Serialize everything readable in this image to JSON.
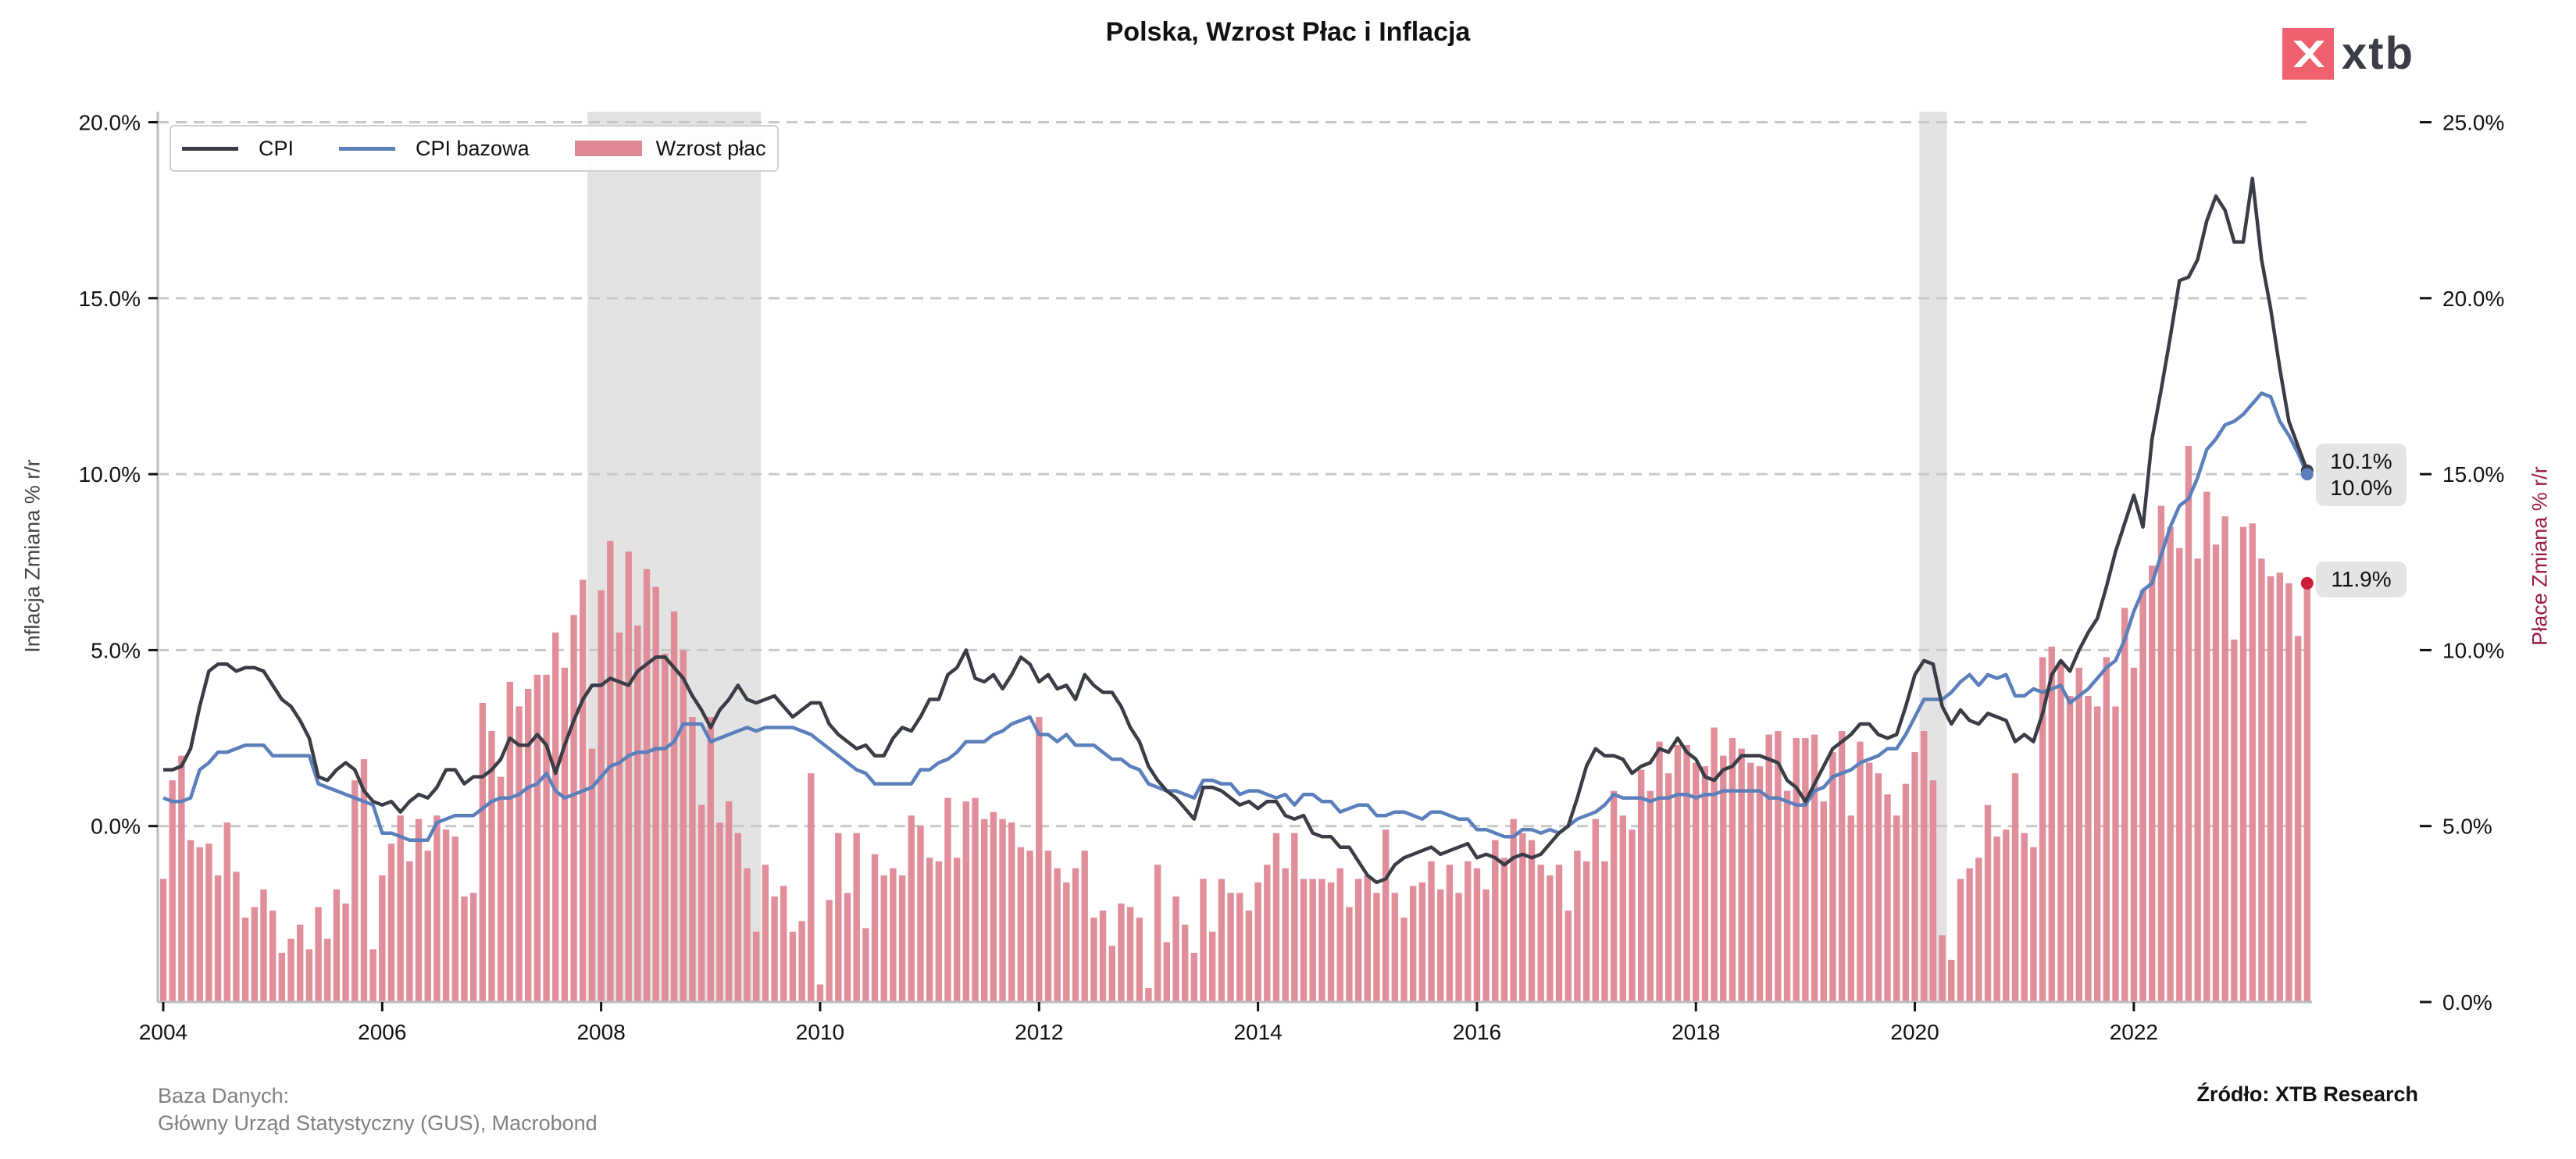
{
  "title": "Polska, Wzrost Płac i Inflacja",
  "logo_text": "xtb",
  "footer": {
    "database_label": "Baza Danych:",
    "database_sources": "Główny Urząd Statystyczny (GUS), Macrobond",
    "source": "Źródło: XTB Research"
  },
  "annotations": {
    "cpi_last": "10.1%",
    "core_last": "10.0%",
    "wages_last": "11.9%"
  },
  "colors": {
    "cpi": "#3a3d46",
    "core": "#5b7fbb",
    "wages": "#df8896",
    "wages_dot": "#cc1d3a",
    "shading": "#e3e3e3",
    "grid": "#c8c8c8"
  },
  "chart_data": {
    "type": "bar+line",
    "title": "Polska, Wzrost Płac i Inflacja",
    "ylabel_left": "Inflacja Zmiana % r/r",
    "ylabel_right": "Płace Zmiana % r/r",
    "ylim_left": [
      -5,
      20.3
    ],
    "ylim_right": [
      0,
      25.3
    ],
    "grid": true,
    "legend_position": "top-left",
    "x_tick_labels": [
      "2004",
      "2006",
      "2008",
      "2010",
      "2012",
      "2014",
      "2016",
      "2018",
      "2020",
      "2022"
    ],
    "y_left_tick_labels": [
      "0.0%",
      "5.0%",
      "10.0%",
      "15.0%",
      "20.0%"
    ],
    "y_left_tick_values": [
      0,
      5,
      10,
      15,
      20
    ],
    "y_right_tick_labels": [
      "0.0%",
      "5.0%",
      "10.0%",
      "15.0%",
      "20.0%",
      "25.0%"
    ],
    "y_right_tick_values": [
      0,
      5,
      10,
      15,
      20,
      25
    ],
    "shaded_periods": [
      [
        "2007-12",
        "2009-06"
      ],
      [
        "2020-02",
        "2020-04"
      ]
    ],
    "x": [
      "2004-01",
      "2004-02",
      "2004-03",
      "2004-04",
      "2004-05",
      "2004-06",
      "2004-07",
      "2004-08",
      "2004-09",
      "2004-10",
      "2004-11",
      "2004-12",
      "2005-01",
      "2005-02",
      "2005-03",
      "2005-04",
      "2005-05",
      "2005-06",
      "2005-07",
      "2005-08",
      "2005-09",
      "2005-10",
      "2005-11",
      "2005-12",
      "2006-01",
      "2006-02",
      "2006-03",
      "2006-04",
      "2006-05",
      "2006-06",
      "2006-07",
      "2006-08",
      "2006-09",
      "2006-10",
      "2006-11",
      "2006-12",
      "2007-01",
      "2007-02",
      "2007-03",
      "2007-04",
      "2007-05",
      "2007-06",
      "2007-07",
      "2007-08",
      "2007-09",
      "2007-10",
      "2007-11",
      "2007-12",
      "2008-01",
      "2008-02",
      "2008-03",
      "2008-04",
      "2008-05",
      "2008-06",
      "2008-07",
      "2008-08",
      "2008-09",
      "2008-10",
      "2008-11",
      "2008-12",
      "2009-01",
      "2009-02",
      "2009-03",
      "2009-04",
      "2009-05",
      "2009-06",
      "2009-07",
      "2009-08",
      "2009-09",
      "2009-10",
      "2009-11",
      "2009-12",
      "2010-01",
      "2010-02",
      "2010-03",
      "2010-04",
      "2010-05",
      "2010-06",
      "2010-07",
      "2010-08",
      "2010-09",
      "2010-10",
      "2010-11",
      "2010-12",
      "2011-01",
      "2011-02",
      "2011-03",
      "2011-04",
      "2011-05",
      "2011-06",
      "2011-07",
      "2011-08",
      "2011-09",
      "2011-10",
      "2011-11",
      "2011-12",
      "2012-01",
      "2012-02",
      "2012-03",
      "2012-04",
      "2012-05",
      "2012-06",
      "2012-07",
      "2012-08",
      "2012-09",
      "2012-10",
      "2012-11",
      "2012-12",
      "2013-01",
      "2013-02",
      "2013-03",
      "2013-04",
      "2013-05",
      "2013-06",
      "2013-07",
      "2013-08",
      "2013-09",
      "2013-10",
      "2013-11",
      "2013-12",
      "2014-01",
      "2014-02",
      "2014-03",
      "2014-04",
      "2014-05",
      "2014-06",
      "2014-07",
      "2014-08",
      "2014-09",
      "2014-10",
      "2014-11",
      "2014-12",
      "2015-01",
      "2015-02",
      "2015-03",
      "2015-04",
      "2015-05",
      "2015-06",
      "2015-07",
      "2015-08",
      "2015-09",
      "2015-10",
      "2015-11",
      "2015-12",
      "2016-01",
      "2016-02",
      "2016-03",
      "2016-04",
      "2016-05",
      "2016-06",
      "2016-07",
      "2016-08",
      "2016-09",
      "2016-10",
      "2016-11",
      "2016-12",
      "2017-01",
      "2017-02",
      "2017-03",
      "2017-04",
      "2017-05",
      "2017-06",
      "2017-07",
      "2017-08",
      "2017-09",
      "2017-10",
      "2017-11",
      "2017-12",
      "2018-01",
      "2018-02",
      "2018-03",
      "2018-04",
      "2018-05",
      "2018-06",
      "2018-07",
      "2018-08",
      "2018-09",
      "2018-10",
      "2018-11",
      "2018-12",
      "2019-01",
      "2019-02",
      "2019-03",
      "2019-04",
      "2019-05",
      "2019-06",
      "2019-07",
      "2019-08",
      "2019-09",
      "2019-10",
      "2019-11",
      "2019-12",
      "2020-01",
      "2020-02",
      "2020-03",
      "2020-04",
      "2020-05",
      "2020-06",
      "2020-07",
      "2020-08",
      "2020-09",
      "2020-10",
      "2020-11",
      "2020-12",
      "2021-01",
      "2021-02",
      "2021-03",
      "2021-04",
      "2021-05",
      "2021-06",
      "2021-07",
      "2021-08",
      "2021-09",
      "2021-10",
      "2021-11",
      "2021-12",
      "2022-01",
      "2022-02",
      "2022-03",
      "2022-04",
      "2022-05",
      "2022-06",
      "2022-07",
      "2022-08",
      "2022-09",
      "2022-10",
      "2022-11",
      "2022-12",
      "2023-01",
      "2023-02",
      "2023-03",
      "2023-04",
      "2023-05",
      "2023-06",
      "2023-07",
      "2023-08"
    ],
    "series": [
      {
        "name": "CPI",
        "type": "line",
        "axis": "left",
        "values": [
          1.6,
          1.6,
          1.7,
          2.2,
          3.4,
          4.4,
          4.6,
          4.6,
          4.4,
          4.5,
          4.5,
          4.4,
          4.0,
          3.6,
          3.4,
          3.0,
          2.5,
          1.4,
          1.3,
          1.6,
          1.8,
          1.6,
          1.0,
          0.7,
          0.6,
          0.7,
          0.4,
          0.7,
          0.9,
          0.8,
          1.1,
          1.6,
          1.6,
          1.2,
          1.4,
          1.4,
          1.6,
          1.9,
          2.5,
          2.3,
          2.3,
          2.6,
          2.3,
          1.5,
          2.3,
          3.0,
          3.6,
          4.0,
          4.0,
          4.2,
          4.1,
          4.0,
          4.4,
          4.6,
          4.8,
          4.8,
          4.5,
          4.2,
          3.7,
          3.3,
          2.8,
          3.3,
          3.6,
          4.0,
          3.6,
          3.5,
          3.6,
          3.7,
          3.4,
          3.1,
          3.3,
          3.5,
          3.5,
          2.9,
          2.6,
          2.4,
          2.2,
          2.3,
          2.0,
          2.0,
          2.5,
          2.8,
          2.7,
          3.1,
          3.6,
          3.6,
          4.3,
          4.5,
          5.0,
          4.2,
          4.1,
          4.3,
          3.9,
          4.3,
          4.8,
          4.6,
          4.1,
          4.3,
          3.9,
          4.0,
          3.6,
          4.3,
          4.0,
          3.8,
          3.8,
          3.4,
          2.8,
          2.4,
          1.7,
          1.3,
          1.0,
          0.8,
          0.5,
          0.2,
          1.1,
          1.1,
          1.0,
          0.8,
          0.6,
          0.7,
          0.5,
          0.7,
          0.7,
          0.3,
          0.2,
          0.3,
          -0.2,
          -0.3,
          -0.3,
          -0.6,
          -0.6,
          -1.0,
          -1.4,
          -1.6,
          -1.5,
          -1.1,
          -0.9,
          -0.8,
          -0.7,
          -0.6,
          -0.8,
          -0.7,
          -0.6,
          -0.5,
          -0.9,
          -0.8,
          -0.9,
          -1.1,
          -0.9,
          -0.8,
          -0.9,
          -0.8,
          -0.5,
          -0.2,
          0.0,
          0.8,
          1.7,
          2.2,
          2.0,
          2.0,
          1.9,
          1.5,
          1.7,
          1.8,
          2.2,
          2.1,
          2.5,
          2.1,
          1.9,
          1.4,
          1.3,
          1.6,
          1.7,
          2.0,
          2.0,
          2.0,
          1.9,
          1.8,
          1.3,
          1.1,
          0.7,
          1.2,
          1.7,
          2.2,
          2.4,
          2.6,
          2.9,
          2.9,
          2.6,
          2.5,
          2.6,
          3.4,
          4.3,
          4.7,
          4.6,
          3.4,
          2.9,
          3.3,
          3.0,
          2.9,
          3.2,
          3.1,
          3.0,
          2.4,
          2.6,
          2.4,
          3.2,
          4.3,
          4.7,
          4.4,
          5.0,
          5.5,
          5.9,
          6.8,
          7.8,
          8.6,
          9.4,
          8.5,
          11.0,
          12.4,
          13.9,
          15.5,
          15.6,
          16.1,
          17.2,
          17.9,
          17.5,
          16.6,
          16.6,
          18.4,
          16.1,
          14.7,
          13.0,
          11.5,
          10.8,
          10.1
        ]
      },
      {
        "name": "CPI bazowa",
        "type": "line",
        "axis": "left",
        "values": [
          0.8,
          0.7,
          0.7,
          0.8,
          1.6,
          1.8,
          2.1,
          2.1,
          2.2,
          2.3,
          2.3,
          2.3,
          2.0,
          2.0,
          2.0,
          2.0,
          2.0,
          1.2,
          1.1,
          1.0,
          0.9,
          0.8,
          0.7,
          0.6,
          -0.2,
          -0.2,
          -0.3,
          -0.4,
          -0.4,
          -0.4,
          0.1,
          0.2,
          0.3,
          0.3,
          0.3,
          0.5,
          0.7,
          0.8,
          0.8,
          0.9,
          1.1,
          1.2,
          1.5,
          1.0,
          0.8,
          0.9,
          1.0,
          1.1,
          1.4,
          1.7,
          1.8,
          2.0,
          2.1,
          2.1,
          2.2,
          2.2,
          2.4,
          2.9,
          2.9,
          2.9,
          2.4,
          2.5,
          2.6,
          2.7,
          2.8,
          2.7,
          2.8,
          2.8,
          2.8,
          2.8,
          2.7,
          2.6,
          2.4,
          2.2,
          2.0,
          1.8,
          1.6,
          1.5,
          1.2,
          1.2,
          1.2,
          1.2,
          1.2,
          1.6,
          1.6,
          1.8,
          1.9,
          2.1,
          2.4,
          2.4,
          2.4,
          2.6,
          2.7,
          2.9,
          3.0,
          3.1,
          2.6,
          2.6,
          2.4,
          2.6,
          2.3,
          2.3,
          2.3,
          2.1,
          1.9,
          1.9,
          1.7,
          1.6,
          1.2,
          1.1,
          1.0,
          1.0,
          0.9,
          0.8,
          1.3,
          1.3,
          1.2,
          1.2,
          0.9,
          1.0,
          1.0,
          0.9,
          0.8,
          0.9,
          0.6,
          0.9,
          0.9,
          0.7,
          0.7,
          0.4,
          0.5,
          0.6,
          0.6,
          0.3,
          0.3,
          0.4,
          0.4,
          0.3,
          0.2,
          0.4,
          0.4,
          0.3,
          0.2,
          0.2,
          -0.1,
          -0.1,
          -0.2,
          -0.3,
          -0.3,
          -0.1,
          -0.1,
          -0.2,
          -0.1,
          -0.2,
          0.0,
          0.2,
          0.3,
          0.4,
          0.6,
          0.9,
          0.8,
          0.8,
          0.8,
          0.7,
          0.8,
          0.8,
          0.9,
          0.9,
          0.8,
          0.9,
          0.9,
          1.0,
          1.0,
          1.0,
          1.0,
          1.0,
          0.8,
          0.8,
          0.7,
          0.6,
          0.6,
          1.0,
          1.1,
          1.4,
          1.5,
          1.6,
          1.8,
          1.9,
          2.0,
          2.2,
          2.2,
          2.6,
          3.1,
          3.6,
          3.6,
          3.6,
          3.8,
          4.1,
          4.3,
          4.0,
          4.3,
          4.2,
          4.3,
          3.7,
          3.7,
          3.9,
          3.8,
          3.9,
          4.0,
          3.5,
          3.7,
          3.9,
          4.2,
          4.5,
          4.7,
          5.3,
          6.1,
          6.7,
          6.9,
          7.7,
          8.5,
          9.1,
          9.3,
          9.9,
          10.7,
          11.0,
          11.4,
          11.5,
          11.7,
          12.0,
          12.3,
          12.2,
          11.5,
          11.1,
          10.6,
          10.0
        ]
      },
      {
        "name": "Wzrost płac",
        "type": "bar",
        "axis": "right",
        "values": [
          3.5,
          6.3,
          7.0,
          4.6,
          4.4,
          4.5,
          3.6,
          5.1,
          3.7,
          2.4,
          2.7,
          3.2,
          2.6,
          1.4,
          1.8,
          2.2,
          1.5,
          2.7,
          1.8,
          3.2,
          2.8,
          6.3,
          6.9,
          1.5,
          3.6,
          4.5,
          5.3,
          4.0,
          5.2,
          4.3,
          5.3,
          4.9,
          4.7,
          3.0,
          3.1,
          8.5,
          7.7,
          6.4,
          9.1,
          8.4,
          8.9,
          9.3,
          9.3,
          10.5,
          9.5,
          11.0,
          12.0,
          7.2,
          11.7,
          13.1,
          10.5,
          12.8,
          10.7,
          12.3,
          11.8,
          9.9,
          11.1,
          10.0,
          8.1,
          5.6,
          8.1,
          5.1,
          5.7,
          4.8,
          3.8,
          2.0,
          3.9,
          3.0,
          3.3,
          2.0,
          2.3,
          6.5,
          0.5,
          2.9,
          4.8,
          3.1,
          4.8,
          2.1,
          4.2,
          3.6,
          3.8,
          3.6,
          5.3,
          5.0,
          4.1,
          4.0,
          5.8,
          4.1,
          5.7,
          5.8,
          5.2,
          5.4,
          5.2,
          5.1,
          4.4,
          4.3,
          8.1,
          4.3,
          3.8,
          3.4,
          3.8,
          4.3,
          2.4,
          2.6,
          1.6,
          2.8,
          2.7,
          2.4,
          0.4,
          3.9,
          1.7,
          3.0,
          2.2,
          1.4,
          3.5,
          2.0,
          3.5,
          3.1,
          3.1,
          2.6,
          3.4,
          3.9,
          4.8,
          3.8,
          4.8,
          3.5,
          3.5,
          3.5,
          3.4,
          3.8,
          2.7,
          3.5,
          3.6,
          3.1,
          4.9,
          3.1,
          2.4,
          3.3,
          3.4,
          4.0,
          3.2,
          3.9,
          3.1,
          4.0,
          3.8,
          3.2,
          4.6,
          4.1,
          5.2,
          4.8,
          4.6,
          3.9,
          3.6,
          3.9,
          2.6,
          4.3,
          4.0,
          5.2,
          4.0,
          6.0,
          5.3,
          4.9,
          6.6,
          6.0,
          7.4,
          6.5,
          7.3,
          7.3,
          6.8,
          6.7,
          7.8,
          7.0,
          7.5,
          7.2,
          6.8,
          6.7,
          7.6,
          7.7,
          6.0,
          7.5,
          7.5,
          7.6,
          5.7,
          7.1,
          7.7,
          5.3,
          7.4,
          6.8,
          6.5,
          5.9,
          5.3,
          6.2,
          7.1,
          7.7,
          6.3,
          1.9,
          1.2,
          3.5,
          3.8,
          4.1,
          5.6,
          4.7,
          4.9,
          6.5,
          4.8,
          4.4,
          9.8,
          10.1,
          9.7,
          8.7,
          9.5,
          8.7,
          8.4,
          9.8,
          8.4,
          11.2,
          9.5,
          11.7,
          12.4,
          14.1,
          13.5,
          12.9,
          15.8,
          12.6,
          14.5,
          13.0,
          13.8,
          10.3,
          13.5,
          13.6,
          12.6,
          12.1,
          12.2,
          11.9,
          10.4,
          11.9
        ]
      }
    ]
  }
}
